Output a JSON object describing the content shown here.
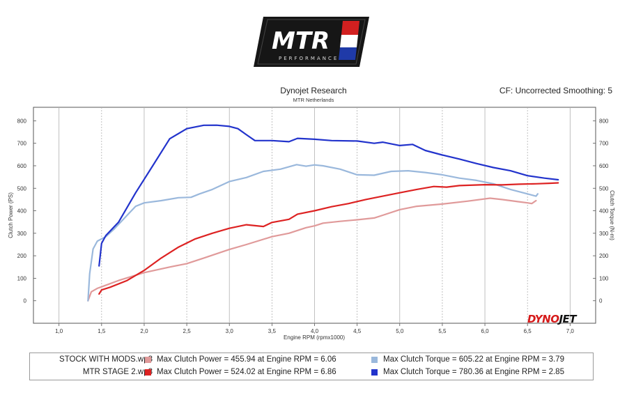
{
  "logo": {
    "text": "MTR",
    "sub": "PERFORMANCE"
  },
  "header": {
    "title": "Dynojet Research",
    "subtitle": "MTR Netherlands",
    "cf": "CF: Uncorrected Smoothing: 5"
  },
  "brand": {
    "part1": "DYNO",
    "part2": "JET"
  },
  "chart_data": {
    "type": "line",
    "xlabel": "Engine RPM (rpmx1000)",
    "ylabel_left": "Clutch Power (PS)",
    "ylabel_right": "Clutch Torque (N-m)",
    "xlim": [
      0.7,
      7.3
    ],
    "ylim": [
      -100,
      860
    ],
    "x_ticks": [
      "1,0",
      "1,5",
      "2,0",
      "2,5",
      "3,0",
      "3,5",
      "4,0",
      "4,5",
      "5,0",
      "5,5",
      "6,0",
      "6,5",
      "7,0"
    ],
    "y_ticks": [
      "800",
      "700",
      "600",
      "500",
      "400",
      "300",
      "200",
      "100",
      "0"
    ],
    "grid": true,
    "series": [
      {
        "name": "STOCK WITH MODS.wp8",
        "metric": "power",
        "color": "#e09a9a",
        "points": [
          [
            1.34,
            0
          ],
          [
            1.38,
            40
          ],
          [
            1.45,
            55
          ],
          [
            1.5,
            62
          ],
          [
            1.7,
            90
          ],
          [
            2.0,
            125
          ],
          [
            2.3,
            150
          ],
          [
            2.5,
            165
          ],
          [
            2.7,
            190
          ],
          [
            3.0,
            228
          ],
          [
            3.2,
            250
          ],
          [
            3.5,
            285
          ],
          [
            3.7,
            300
          ],
          [
            3.9,
            325
          ],
          [
            4.0,
            333
          ],
          [
            4.1,
            345
          ],
          [
            4.3,
            353
          ],
          [
            4.5,
            360
          ],
          [
            4.7,
            368
          ],
          [
            4.8,
            380
          ],
          [
            5.0,
            405
          ],
          [
            5.2,
            420
          ],
          [
            5.5,
            430
          ],
          [
            5.8,
            443
          ],
          [
            6.06,
            455.94
          ],
          [
            6.2,
            450
          ],
          [
            6.4,
            440
          ],
          [
            6.5,
            435
          ],
          [
            6.55,
            432
          ],
          [
            6.6,
            445
          ]
        ]
      },
      {
        "name": "STOCK WITH MODS.wp8",
        "metric": "torque",
        "color": "#9ab8dc",
        "points": [
          [
            1.34,
            0
          ],
          [
            1.36,
            120
          ],
          [
            1.4,
            230
          ],
          [
            1.45,
            265
          ],
          [
            1.55,
            285
          ],
          [
            1.65,
            320
          ],
          [
            1.8,
            380
          ],
          [
            1.9,
            420
          ],
          [
            2.0,
            435
          ],
          [
            2.2,
            445
          ],
          [
            2.4,
            458
          ],
          [
            2.55,
            460
          ],
          [
            2.65,
            475
          ],
          [
            2.8,
            495
          ],
          [
            3.0,
            530
          ],
          [
            3.2,
            548
          ],
          [
            3.4,
            575
          ],
          [
            3.6,
            585
          ],
          [
            3.79,
            605.22
          ],
          [
            3.9,
            598
          ],
          [
            4.0,
            604
          ],
          [
            4.1,
            600
          ],
          [
            4.3,
            585
          ],
          [
            4.5,
            560
          ],
          [
            4.7,
            558
          ],
          [
            4.9,
            575
          ],
          [
            5.1,
            578
          ],
          [
            5.3,
            570
          ],
          [
            5.5,
            560
          ],
          [
            5.7,
            545
          ],
          [
            5.9,
            535
          ],
          [
            6.1,
            520
          ],
          [
            6.3,
            495
          ],
          [
            6.5,
            475
          ],
          [
            6.6,
            465
          ],
          [
            6.62,
            475
          ]
        ]
      },
      {
        "name": "MTR STAGE 2.wp8",
        "metric": "power",
        "color": "#dd2222",
        "points": [
          [
            1.47,
            30
          ],
          [
            1.5,
            48
          ],
          [
            1.6,
            60
          ],
          [
            1.8,
            90
          ],
          [
            2.0,
            135
          ],
          [
            2.2,
            190
          ],
          [
            2.4,
            238
          ],
          [
            2.6,
            275
          ],
          [
            2.8,
            300
          ],
          [
            3.0,
            322
          ],
          [
            3.2,
            338
          ],
          [
            3.4,
            330
          ],
          [
            3.5,
            348
          ],
          [
            3.7,
            362
          ],
          [
            3.8,
            385
          ],
          [
            4.0,
            400
          ],
          [
            4.2,
            418
          ],
          [
            4.4,
            432
          ],
          [
            4.6,
            450
          ],
          [
            4.8,
            465
          ],
          [
            5.0,
            480
          ],
          [
            5.2,
            495
          ],
          [
            5.4,
            508
          ],
          [
            5.55,
            505
          ],
          [
            5.7,
            512
          ],
          [
            6.0,
            516
          ],
          [
            6.2,
            515
          ],
          [
            6.4,
            518
          ],
          [
            6.6,
            520
          ],
          [
            6.75,
            522
          ],
          [
            6.86,
            524.02
          ]
        ]
      },
      {
        "name": "MTR STAGE 2.wp8",
        "metric": "torque",
        "color": "#2233cc",
        "points": [
          [
            1.47,
            155
          ],
          [
            1.5,
            255
          ],
          [
            1.55,
            290
          ],
          [
            1.7,
            350
          ],
          [
            1.9,
            480
          ],
          [
            2.1,
            600
          ],
          [
            2.3,
            720
          ],
          [
            2.5,
            765
          ],
          [
            2.7,
            780
          ],
          [
            2.85,
            780.36
          ],
          [
            3.0,
            775
          ],
          [
            3.1,
            765
          ],
          [
            3.2,
            738
          ],
          [
            3.3,
            712
          ],
          [
            3.5,
            712
          ],
          [
            3.7,
            707
          ],
          [
            3.8,
            722
          ],
          [
            4.0,
            718
          ],
          [
            4.2,
            712
          ],
          [
            4.5,
            710
          ],
          [
            4.7,
            700
          ],
          [
            4.8,
            705
          ],
          [
            5.0,
            690
          ],
          [
            5.15,
            695
          ],
          [
            5.3,
            668
          ],
          [
            5.5,
            648
          ],
          [
            5.7,
            630
          ],
          [
            5.9,
            610
          ],
          [
            6.1,
            592
          ],
          [
            6.3,
            578
          ],
          [
            6.5,
            556
          ],
          [
            6.7,
            545
          ],
          [
            6.86,
            538
          ]
        ]
      }
    ]
  },
  "legend": {
    "rows": [
      {
        "file": "STOCK WITH MODS.wp8",
        "power_color": "#e09a9a",
        "power_text": "Max Clutch Power = 455.94 at Engine RPM = 6.06",
        "torque_color": "#9ab8dc",
        "torque_text": "Max Clutch Torque = 605.22 at Engine RPM = 3.79"
      },
      {
        "file": "MTR STAGE 2.wp8",
        "power_color": "#dd2222",
        "power_text": "Max Clutch Power = 524.02 at Engine RPM = 6.86",
        "torque_color": "#2233cc",
        "torque_text": "Max Clutch Torque = 780.36 at Engine RPM = 2.85"
      }
    ]
  }
}
